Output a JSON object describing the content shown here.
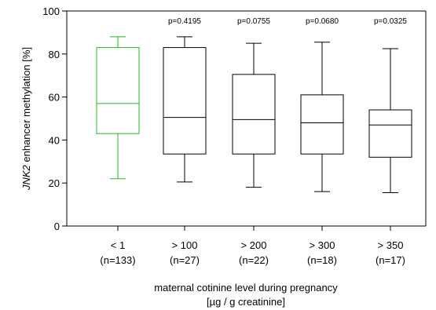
{
  "chart_data": {
    "type": "boxplot",
    "ylabel_italic": "JNK2",
    "ylabel_rest": " enhancer methylation [%]",
    "xlabel_line1": "maternal cotinine level during pregnancy",
    "xlabel_line2": "[µg / g creatinine]",
    "ylim": [
      0,
      100
    ],
    "yticks": [
      0,
      20,
      40,
      60,
      80,
      100
    ],
    "grid": false,
    "categories": [
      {
        "label": "< 1",
        "n": "(n=133)",
        "p": "",
        "min": 22,
        "q1": 43,
        "median": 57,
        "q3": 83,
        "max": 88,
        "color": "#22bb22"
      },
      {
        "label": "> 100",
        "n": "(n=27)",
        "p": "p=0.4195",
        "min": 20.5,
        "q1": 33.5,
        "median": 50.5,
        "q3": 83,
        "max": 88,
        "color": "#000000"
      },
      {
        "label": "> 200",
        "n": "(n=22)",
        "p": "p=0.0755",
        "min": 18,
        "q1": 33.5,
        "median": 49.5,
        "q3": 70.5,
        "max": 85,
        "color": "#000000"
      },
      {
        "label": "> 300",
        "n": "(n=18)",
        "p": "p=0.0680",
        "min": 16,
        "q1": 33.5,
        "median": 48,
        "q3": 61,
        "max": 85.5,
        "color": "#000000"
      },
      {
        "label": "> 350",
        "n": "(n=17)",
        "p": "p=0.0325",
        "min": 15.5,
        "q1": 32,
        "median": 47,
        "q3": 54,
        "max": 82.5,
        "color": "#000000"
      }
    ]
  }
}
